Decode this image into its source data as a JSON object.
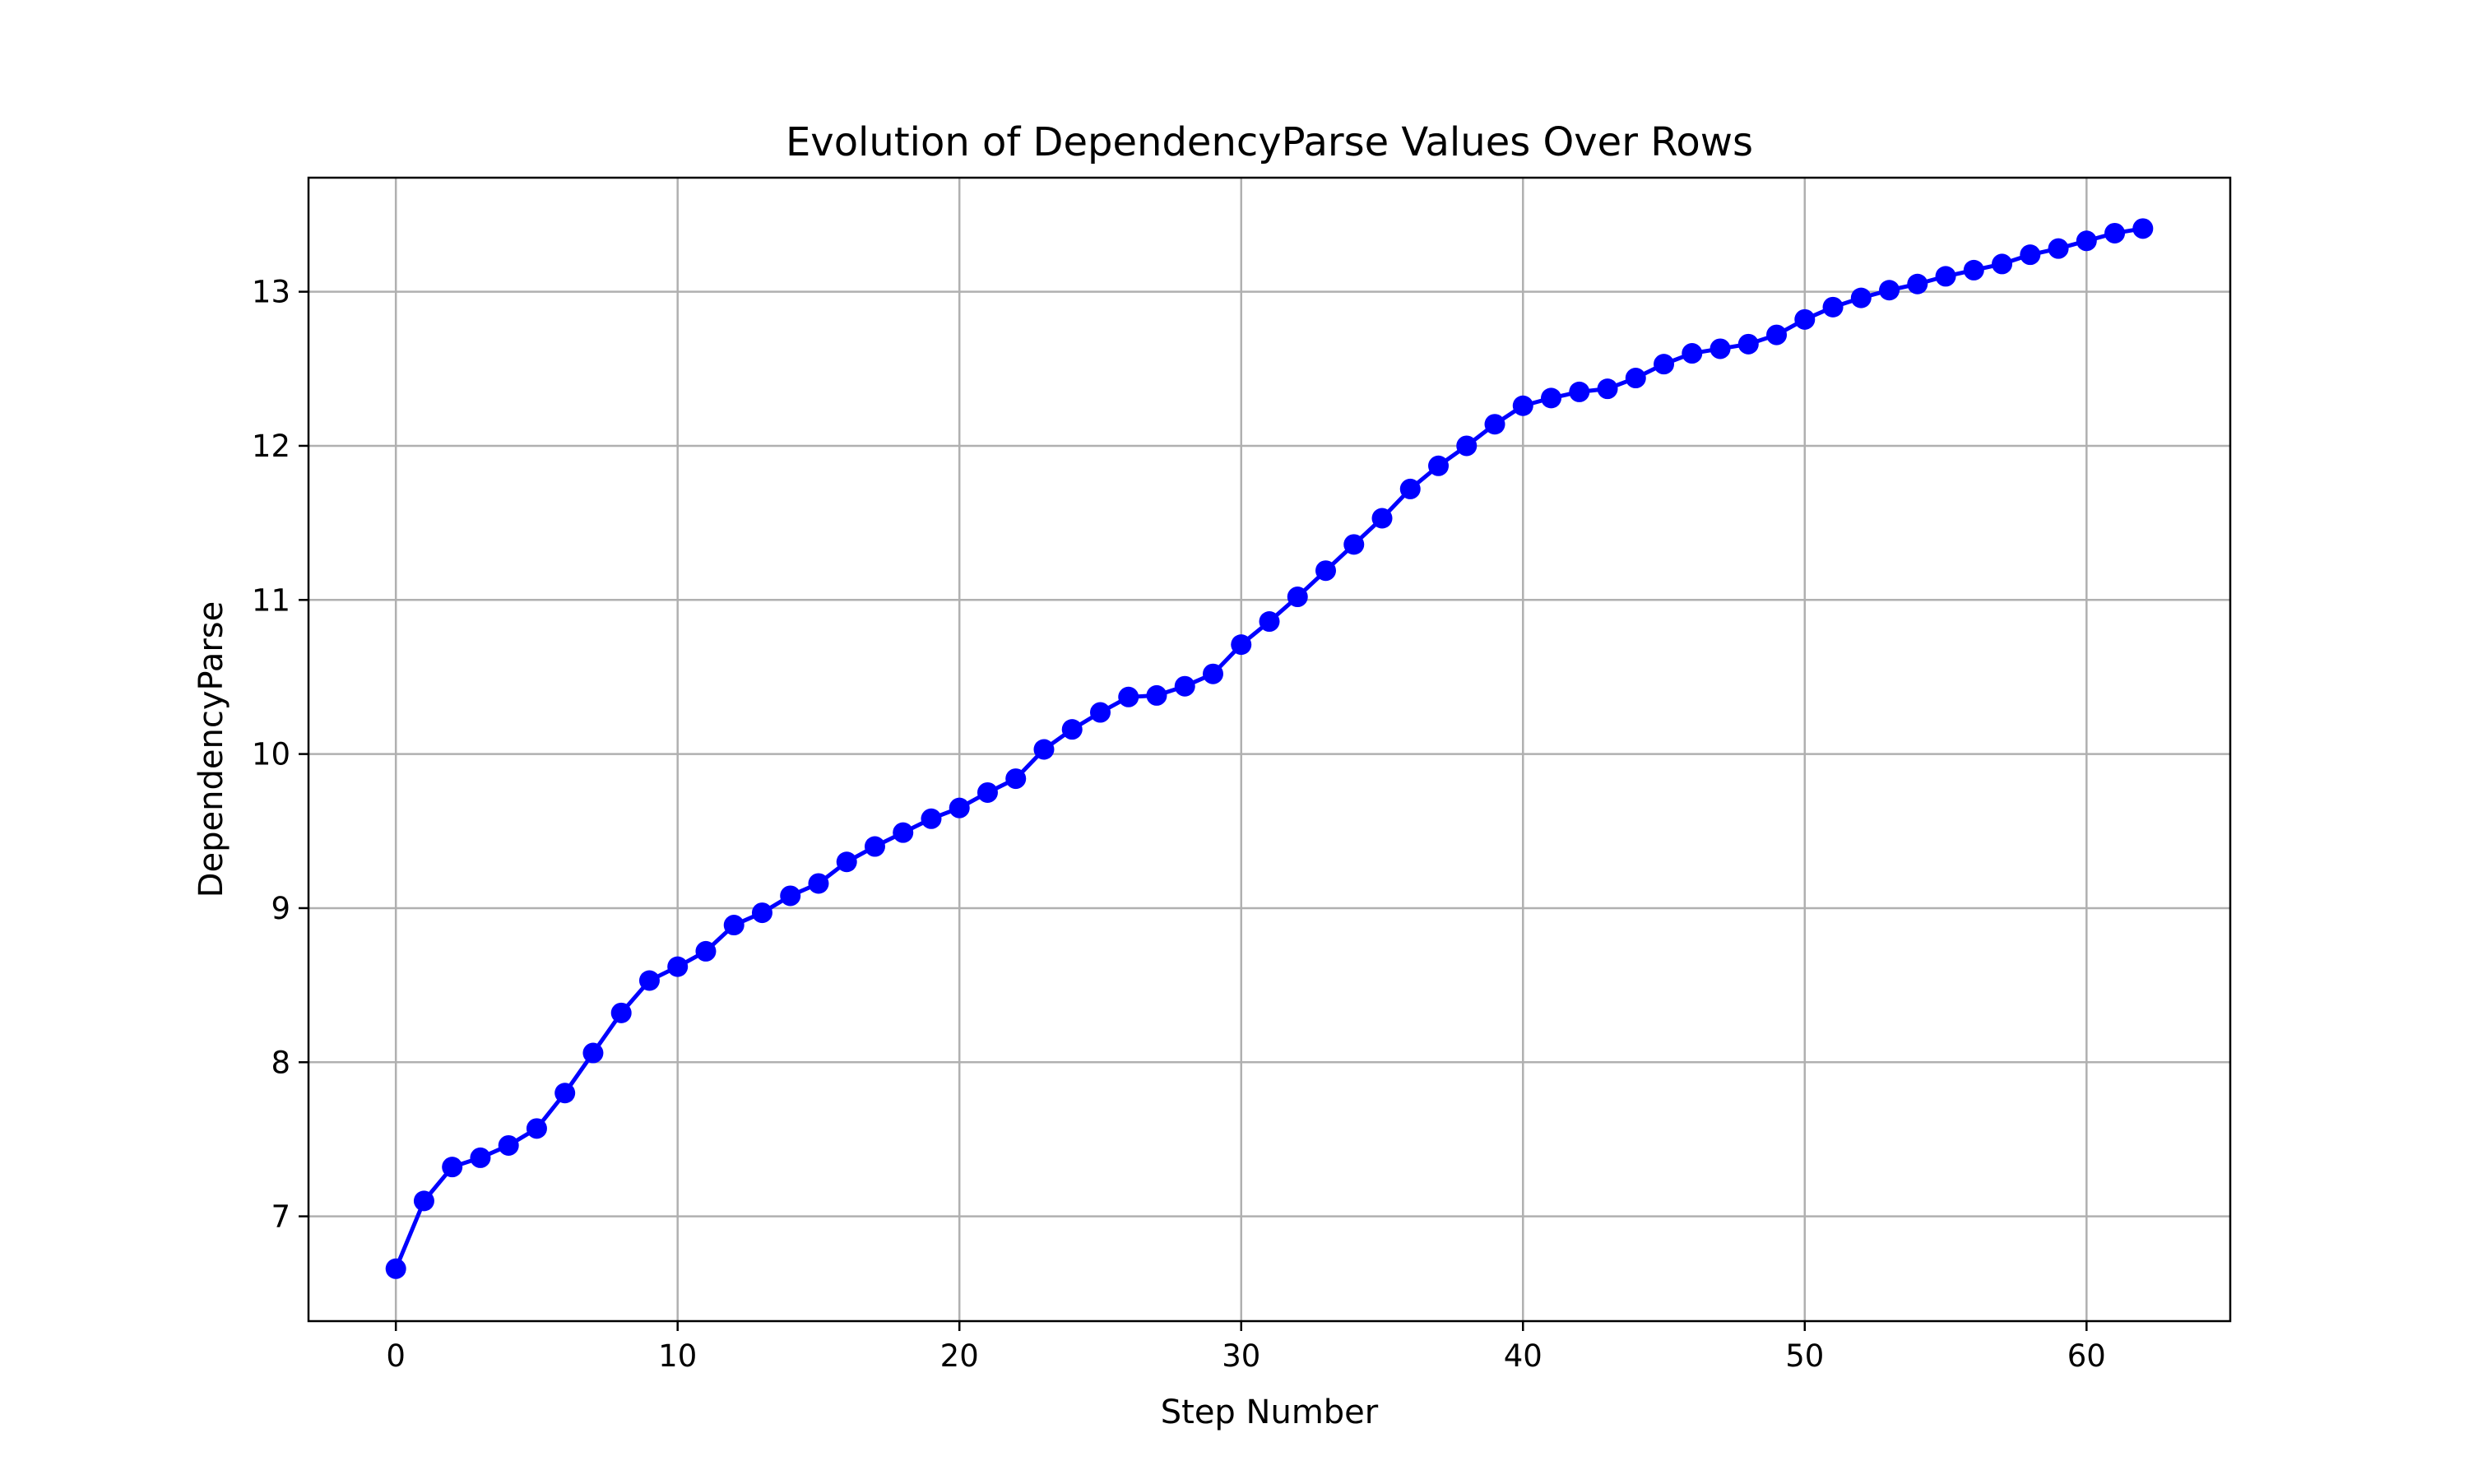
{
  "chart_data": {
    "type": "line",
    "title": "Evolution of DependencyParse Values Over Rows",
    "xlabel": "Step Number",
    "ylabel": "DependencyParse",
    "xlim": [
      -3.1,
      65.1
    ],
    "ylim": [
      6.32,
      13.74
    ],
    "xticks": [
      0,
      10,
      20,
      30,
      40,
      50,
      60
    ],
    "yticks": [
      7,
      8,
      9,
      10,
      11,
      12,
      13
    ],
    "grid": true,
    "series": [
      {
        "color": "#0000ff",
        "marker": "circle",
        "x": [
          0,
          1,
          2,
          3,
          4,
          5,
          6,
          7,
          8,
          9,
          10,
          11,
          12,
          13,
          14,
          15,
          16,
          17,
          18,
          19,
          20,
          21,
          22,
          23,
          24,
          25,
          26,
          27,
          28,
          29,
          30,
          31,
          32,
          33,
          34,
          35,
          36,
          37,
          38,
          39,
          40,
          41,
          42,
          43,
          44,
          45,
          46,
          47,
          48,
          49,
          50,
          51,
          52,
          53,
          54,
          55,
          56,
          57,
          58,
          59,
          60,
          61,
          62
        ],
        "values": [
          6.66,
          7.1,
          7.32,
          7.38,
          7.46,
          7.57,
          7.8,
          8.06,
          8.32,
          8.53,
          8.62,
          8.72,
          8.89,
          8.97,
          9.08,
          9.16,
          9.3,
          9.4,
          9.49,
          9.58,
          9.65,
          9.75,
          9.84,
          10.03,
          10.16,
          10.27,
          10.37,
          10.38,
          10.44,
          10.52,
          10.71,
          10.86,
          11.02,
          11.19,
          11.36,
          11.53,
          11.72,
          11.87,
          12.0,
          12.14,
          12.26,
          12.31,
          12.35,
          12.37,
          12.44,
          12.53,
          12.6,
          12.63,
          12.66,
          12.72,
          12.82,
          12.9,
          12.96,
          13.01,
          13.05,
          13.1,
          13.14,
          13.18,
          13.24,
          13.28,
          13.33,
          13.38,
          13.41
        ]
      }
    ]
  }
}
